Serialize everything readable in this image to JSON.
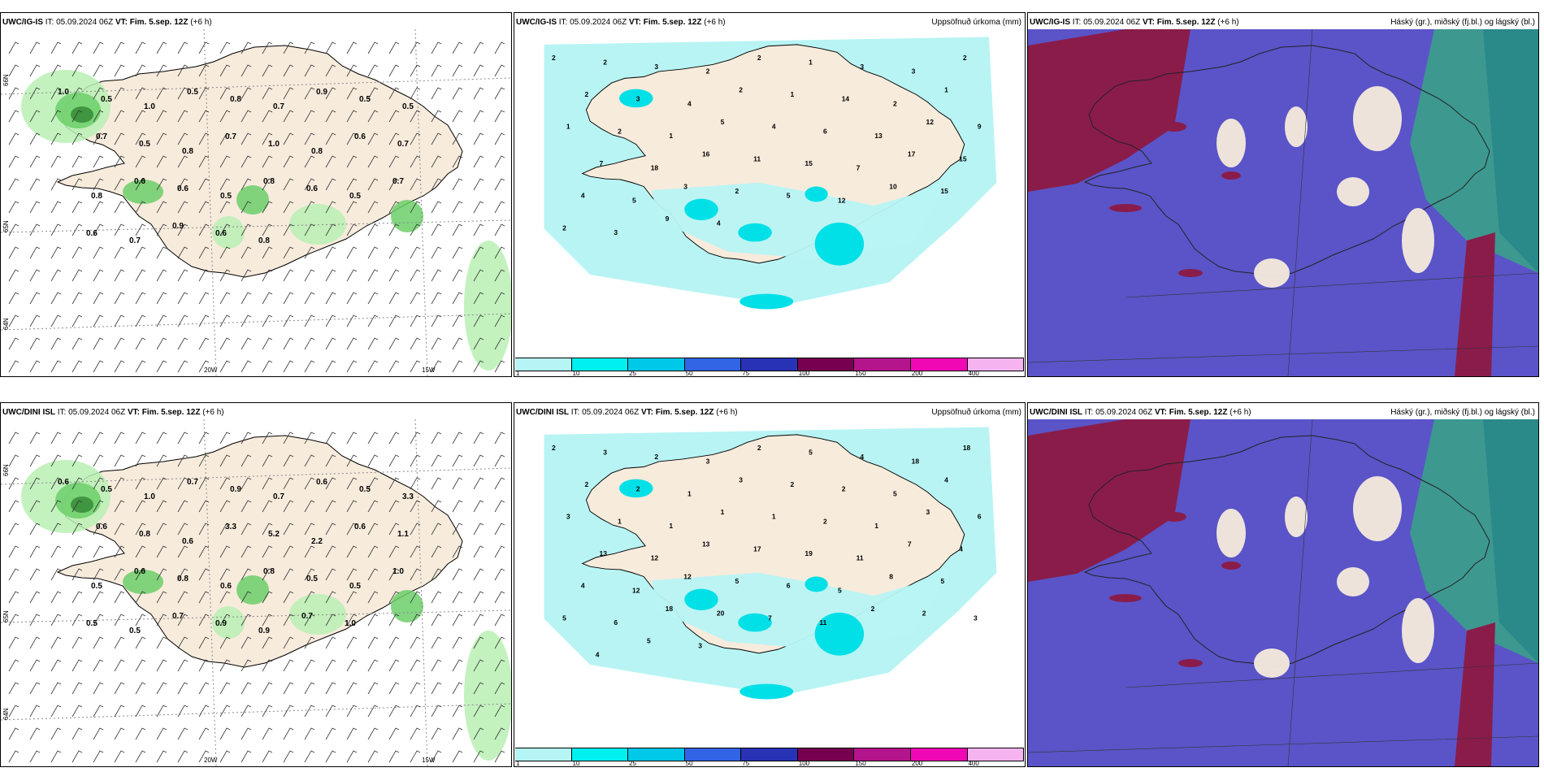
{
  "rows": [
    {
      "model": "UWC/IG-IS",
      "it_label": "IT:",
      "it_value": "05.09.2024 06Z",
      "vt_label": "VT:",
      "vt_value": "Fim. 5.sep. 12Z",
      "lead": "(+6 h)",
      "wind_labels": [
        "1.0",
        "0.5",
        "1.0",
        "0.5",
        "0.8",
        "0.7",
        "0.9",
        "0.5",
        "0.5",
        "0.7",
        "0.5",
        "0.8",
        "0.7",
        "1.0",
        "0.8",
        "0.6",
        "0.7",
        "0.8",
        "0.6",
        "0.6",
        "0.5",
        "0.8",
        "0.6",
        "0.5",
        "0.7",
        "0.6",
        "0.7",
        "0.9",
        "0.6",
        "0.8"
      ],
      "precip_labels": [
        "2",
        "2",
        "3",
        "2",
        "2",
        "1",
        "3",
        "3",
        "2",
        "2",
        "3",
        "4",
        "2",
        "1",
        "14",
        "2",
        "1",
        "1",
        "2",
        "1",
        "5",
        "4",
        "6",
        "13",
        "12",
        "9",
        "7",
        "18",
        "16",
        "11",
        "15",
        "7",
        "17",
        "15",
        "4",
        "5",
        "3",
        "2",
        "5",
        "12",
        "10",
        "15",
        "2",
        "3",
        "9",
        "4"
      ],
      "ticks": [
        "20W",
        "15W",
        "66N",
        "65N",
        "64N"
      ]
    },
    {
      "model": "UWC/DINI ISL",
      "it_label": "IT:",
      "it_value": "05.09.2024 06Z",
      "vt_label": "VT:",
      "vt_value": "Fim. 5.sep. 12Z",
      "lead": "(+6 h)",
      "wind_labels": [
        "0.6",
        "0.5",
        "1.0",
        "0.7",
        "0.9",
        "0.7",
        "0.6",
        "0.5",
        "3.3",
        "0.6",
        "0.8",
        "0.6",
        "3.3",
        "5.2",
        "2.2",
        "0.6",
        "1.1",
        "0.5",
        "0.6",
        "0.8",
        "0.6",
        "0.8",
        "0.5",
        "0.5",
        "1.0",
        "0.5",
        "0.5",
        "0.7",
        "0.9",
        "0.9",
        "0.7",
        "1.0"
      ],
      "precip_labels": [
        "2",
        "3",
        "2",
        "3",
        "2",
        "5",
        "4",
        "18",
        "18",
        "2",
        "2",
        "1",
        "3",
        "2",
        "2",
        "5",
        "4",
        "3",
        "1",
        "1",
        "1",
        "1",
        "2",
        "1",
        "3",
        "6",
        "13",
        "12",
        "13",
        "17",
        "19",
        "11",
        "7",
        "4",
        "4",
        "12",
        "12",
        "5",
        "6",
        "5",
        "8",
        "5",
        "5",
        "6",
        "18",
        "20",
        "7",
        "11",
        "2",
        "2",
        "3",
        "4",
        "5",
        "3"
      ],
      "ticks": [
        "20W",
        "15W",
        "66N",
        "65N",
        "64N"
      ]
    }
  ],
  "precip_title": "Uppsöfnuð úrkoma (mm)",
  "cloud_title": "Háský (gr.), miðský (fj.bl.) og lágský (bl.)",
  "colorbar": {
    "ticks": [
      "1",
      "10",
      "25",
      "50",
      "75",
      "100",
      "150",
      "200",
      "400"
    ],
    "colors": [
      "#b5f5f5",
      "#00f0f0",
      "#00c8e8",
      "#3264e6",
      "#2832b4",
      "#780050",
      "#b4148c",
      "#f008b4",
      "#f5b4f0"
    ]
  },
  "colors": {
    "land": "#f7ebdc",
    "sea_precip": "#b8f4f4",
    "precip_heavy": "#00e0e6",
    "wind_green_light": "#b9f0b4",
    "wind_green_mid": "#6ccf6a",
    "wind_green_dark": "#1a6a1c",
    "cloud_high": "#8a1c4a",
    "cloud_mid": "#5a54c8",
    "cloud_low": "#2a8a8a",
    "cloud_teal": "#3aa08a"
  }
}
